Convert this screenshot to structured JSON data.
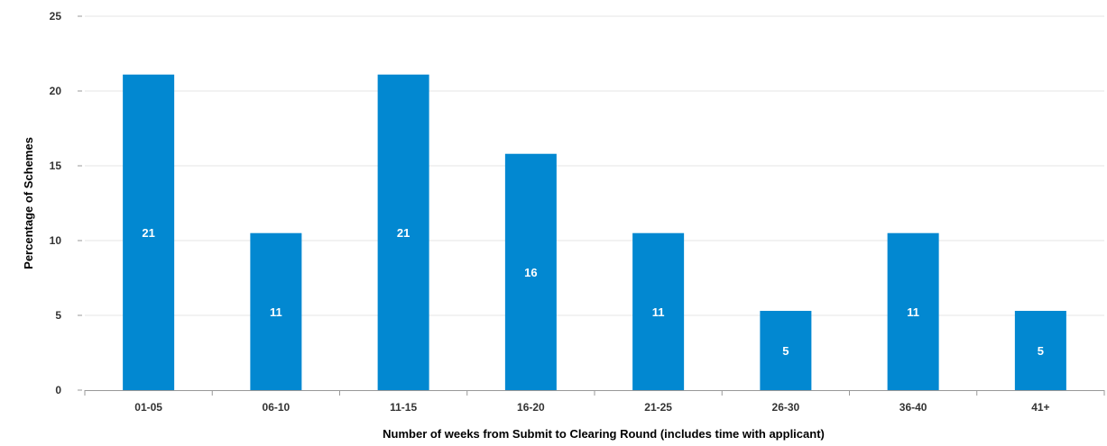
{
  "chart_data": {
    "type": "bar",
    "categories": [
      "01-05",
      "06-10",
      "11-15",
      "16-20",
      "21-25",
      "26-30",
      "36-40",
      "41+"
    ],
    "values": [
      21.1,
      10.5,
      21.1,
      15.8,
      10.5,
      5.3,
      10.5,
      5.3
    ],
    "data_labels": [
      "21",
      "11",
      "21",
      "16",
      "11",
      "5",
      "11",
      "5"
    ],
    "xlabel": "Number of weeks from Submit to Clearing Round (includes time with applicant)",
    "ylabel": "Percentage of Schemes",
    "ylim": [
      0,
      25
    ],
    "yticks": [
      "0",
      "5",
      "10",
      "15",
      "20",
      "25"
    ],
    "grid": true,
    "legend": "none",
    "colors": {
      "bar": "#0288d1",
      "grid": "#e6e6e6",
      "axis": "#999999",
      "label": "#ffffff"
    }
  }
}
